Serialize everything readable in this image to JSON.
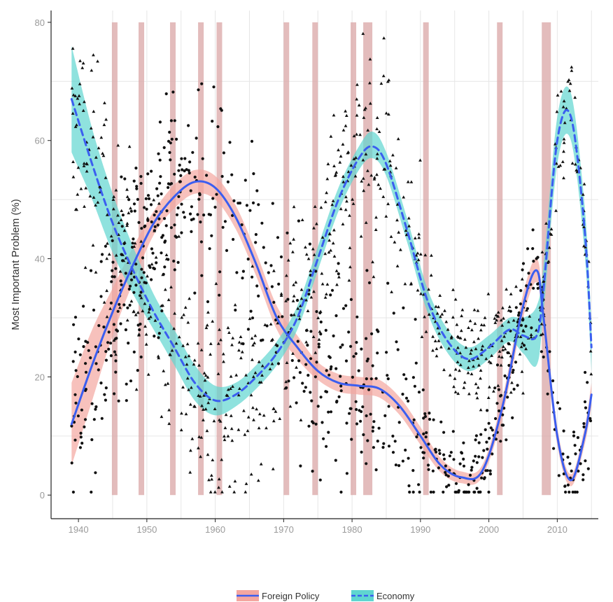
{
  "chart_data": {
    "type": "scatter",
    "title": "",
    "xlabel": "",
    "ylabel": "Most Important Problem (%)",
    "xlim": [
      1936,
      2016
    ],
    "ylim": [
      -4,
      82
    ],
    "x_ticks": [
      "1940",
      "1950",
      "1960",
      "1970",
      "1980",
      "1990",
      "2000",
      "2010"
    ],
    "x_tick_values": [
      1940,
      1950,
      1960,
      1970,
      1980,
      1990,
      2000,
      2010
    ],
    "y_ticks": [
      "0",
      "20",
      "40",
      "60",
      "80"
    ],
    "y_tick_values": [
      0,
      20,
      40,
      60,
      80
    ],
    "grid": true,
    "legend_position": "bottom",
    "colors": {
      "foreign_band": "#f4a6a0",
      "economy_band": "#5fd6d0",
      "line": "#3b5ef0",
      "points": "#111111",
      "shade_bars": "#d9a6a6"
    },
    "shaded_periods": [
      1945.3,
      1949.2,
      1953.8,
      1957.9,
      1960.6,
      1970.4,
      1974.6,
      1980.2,
      1982.3,
      1990.8,
      2001.6,
      2008.4
    ],
    "series": [
      {
        "name": "Foreign Policy",
        "style": "solid",
        "x": [
          1939,
          1942,
          1945,
          1948,
          1951,
          1954,
          1957,
          1960,
          1963,
          1966,
          1969,
          1972,
          1975,
          1978,
          1981,
          1984,
          1987,
          1990,
          1993,
          1996,
          1999,
          2002,
          2005,
          2007,
          2008,
          2010,
          2012,
          2014,
          2015
        ],
        "y": [
          12,
          22,
          31,
          39,
          46,
          50.5,
          53,
          52,
          47,
          39,
          30,
          25,
          21,
          19,
          18.5,
          18,
          15,
          10,
          5,
          3,
          4,
          15,
          32,
          38,
          30,
          10,
          2.5,
          10,
          17
        ],
        "lower": [
          5,
          16,
          27,
          36,
          44,
          48.5,
          51,
          50,
          45,
          37,
          28,
          23,
          19.5,
          17.5,
          17,
          16.5,
          13.5,
          8.5,
          3.8,
          2,
          3,
          13.5,
          30,
          36,
          28,
          8.5,
          1.5,
          8.5,
          15
        ],
        "upper": [
          19,
          28,
          35,
          42,
          48,
          52.5,
          55,
          54,
          49,
          41,
          32,
          27,
          22.5,
          20.5,
          20,
          19.5,
          16.5,
          11.5,
          6.2,
          4,
          5,
          16.5,
          34,
          40,
          32,
          11.5,
          3.5,
          11.5,
          19
        ]
      },
      {
        "name": "Economy",
        "style": "dashed",
        "x": [
          1939,
          1942,
          1945,
          1948,
          1951,
          1954,
          1957,
          1960,
          1963,
          1966,
          1969,
          1972,
          1975,
          1978,
          1981,
          1983,
          1985,
          1988,
          1991,
          1994,
          1997,
          2000,
          2003,
          2005,
          2007,
          2008,
          2010,
          2012,
          2014,
          2015
        ],
        "y": [
          67,
          56,
          46,
          38,
          31,
          25,
          19,
          16,
          17,
          20,
          24,
          30,
          40,
          50,
          57,
          59,
          56,
          45,
          33,
          26,
          23,
          25,
          28,
          27,
          27,
          35,
          60,
          64,
          45,
          25
        ],
        "lower": [
          58,
          50,
          41,
          34,
          28,
          22,
          16,
          13.5,
          15,
          18,
          22,
          28,
          38,
          48,
          55,
          57,
          54,
          43,
          31,
          24,
          21,
          23,
          26,
          24,
          22,
          31,
          56,
          60,
          41,
          21
        ],
        "upper": [
          76,
          62,
          51,
          42,
          34,
          28,
          22,
          18.5,
          19,
          22,
          26,
          32,
          42,
          52,
          59,
          61.5,
          58,
          47,
          35,
          28,
          25,
          27,
          30,
          30,
          32,
          39,
          64,
          68,
          49,
          29
        ]
      }
    ]
  },
  "legend": {
    "items": [
      {
        "label": "Foreign Policy"
      },
      {
        "label": "Economy"
      }
    ]
  }
}
